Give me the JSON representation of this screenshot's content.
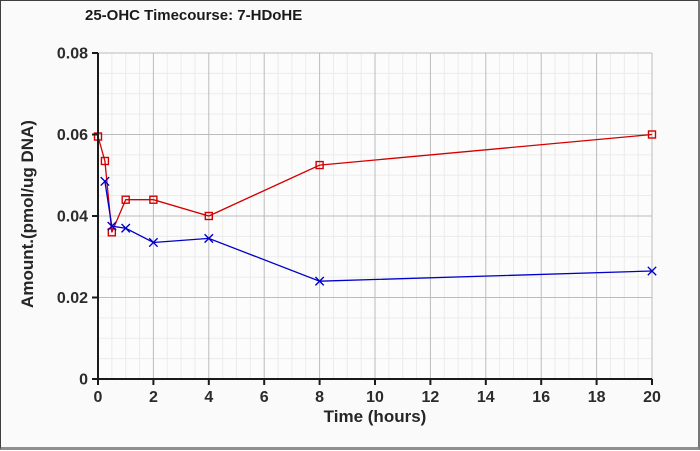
{
  "window": {
    "background": "#fafafa",
    "border_color": "#3f3f3f"
  },
  "chart_data": {
    "type": "line",
    "title": "25-OHC Timecourse: 7-HDoHE",
    "xlabel": "Time (hours)",
    "ylabel": "Amount.(pmol/ug DNA)",
    "xlim": [
      0,
      20
    ],
    "ylim": [
      0,
      0.08
    ],
    "x_major_ticks": [
      0,
      2,
      4,
      6,
      8,
      10,
      12,
      14,
      16,
      18,
      20
    ],
    "x_tick_labels": [
      "0",
      "2",
      "4",
      "6",
      "8",
      "10",
      "12",
      "14",
      "16",
      "18",
      "20"
    ],
    "y_major_ticks": [
      0,
      0.02,
      0.04,
      0.06,
      0.08
    ],
    "y_tick_labels": [
      "0",
      "0.02",
      "0.04",
      "0.06",
      "0.08"
    ],
    "x_minor_step": 0.5,
    "y_minor_step": 0.005,
    "grid": "major-and-minor",
    "legend_position": "none",
    "colors": {
      "axis": "#1a1a1a",
      "tick_label": "#2b2b2b",
      "major_grid": "#bcbcbc",
      "minor_grid": "#ebebeb",
      "plot_background": "#fcfcfc"
    },
    "series": [
      {
        "name": "red-squares-series",
        "color": "#d40000",
        "marker": "open-square",
        "x": [
          0,
          0.25,
          0.5,
          1,
          2,
          4,
          8,
          20
        ],
        "y": [
          0.0595,
          0.0535,
          0.036,
          0.044,
          0.044,
          0.04,
          0.0525,
          0.06
        ]
      },
      {
        "name": "blue-x-series",
        "color": "#0000cc",
        "marker": "x-cross",
        "x": [
          0.25,
          0.5,
          1,
          2,
          4,
          8,
          20
        ],
        "y": [
          0.0485,
          0.0375,
          0.037,
          0.0335,
          0.0345,
          0.024,
          0.0265
        ]
      }
    ]
  }
}
